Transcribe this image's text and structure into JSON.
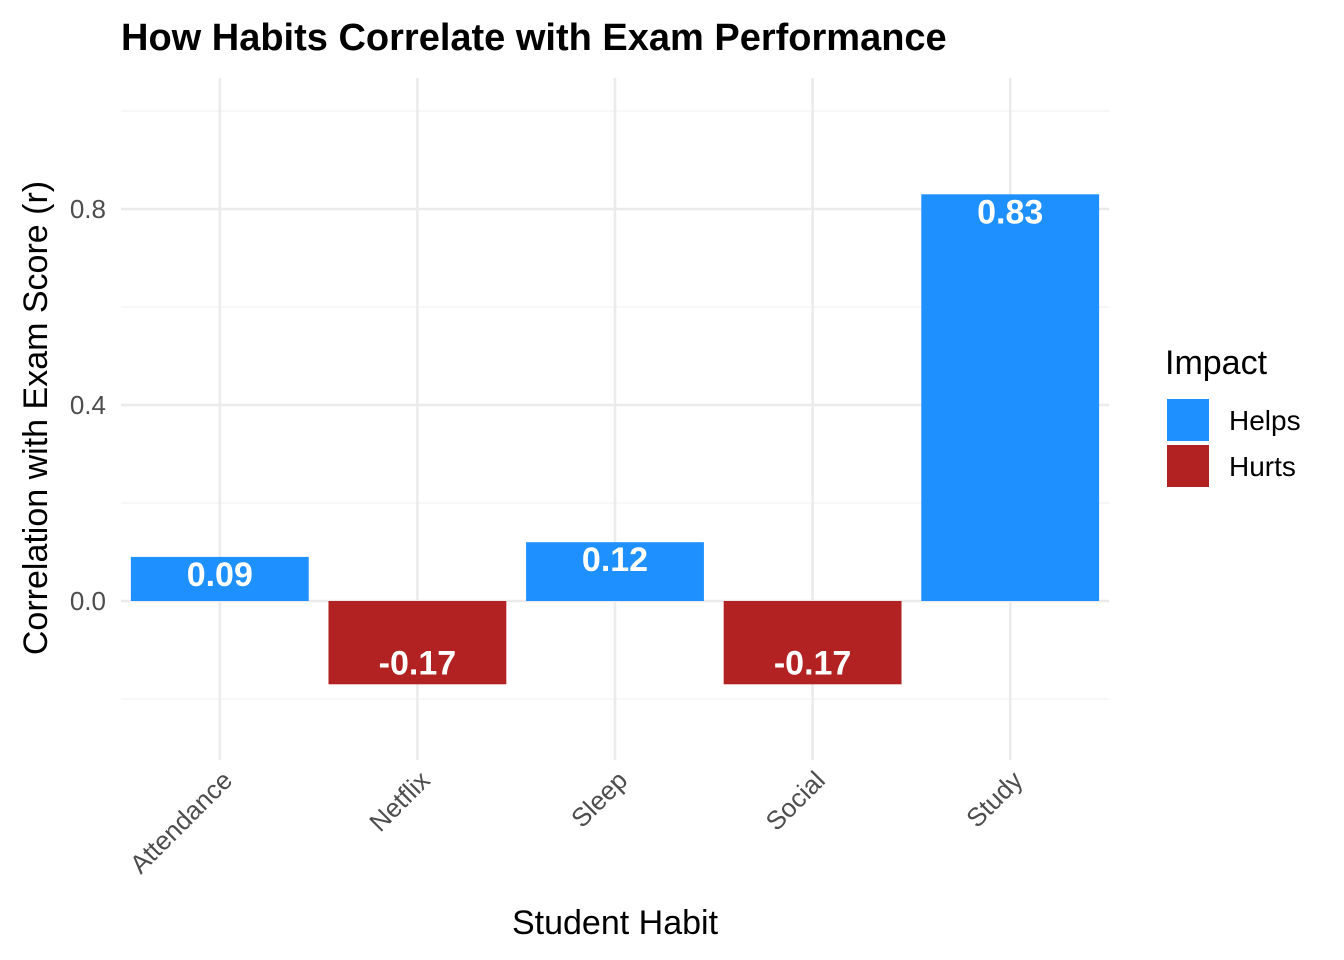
{
  "chart_data": {
    "type": "bar",
    "title": "How Habits Correlate with Exam Performance",
    "xlabel": "Student Habit",
    "ylabel": "Correlation with Exam Score (r)",
    "categories": [
      "Attendance",
      "Netflix",
      "Sleep",
      "Social",
      "Study"
    ],
    "values": [
      0.09,
      -0.17,
      0.12,
      -0.17,
      0.83
    ],
    "value_labels": [
      "0.09",
      "-0.17",
      "0.12",
      "-0.17",
      "0.83"
    ],
    "impact": [
      "Helps",
      "Hurts",
      "Helps",
      "Hurts",
      "Helps"
    ],
    "ylim": [
      -0.3,
      1.0
    ],
    "y_ticks": [
      0.0,
      0.4,
      0.8
    ],
    "y_tick_labels": [
      "0.0",
      "0.4",
      "0.8"
    ],
    "grid": true,
    "legend": {
      "title": "Impact",
      "position": "right",
      "items": [
        {
          "label": "Helps",
          "color": "#1E90FF"
        },
        {
          "label": "Hurts",
          "color": "#B22222"
        }
      ]
    }
  }
}
